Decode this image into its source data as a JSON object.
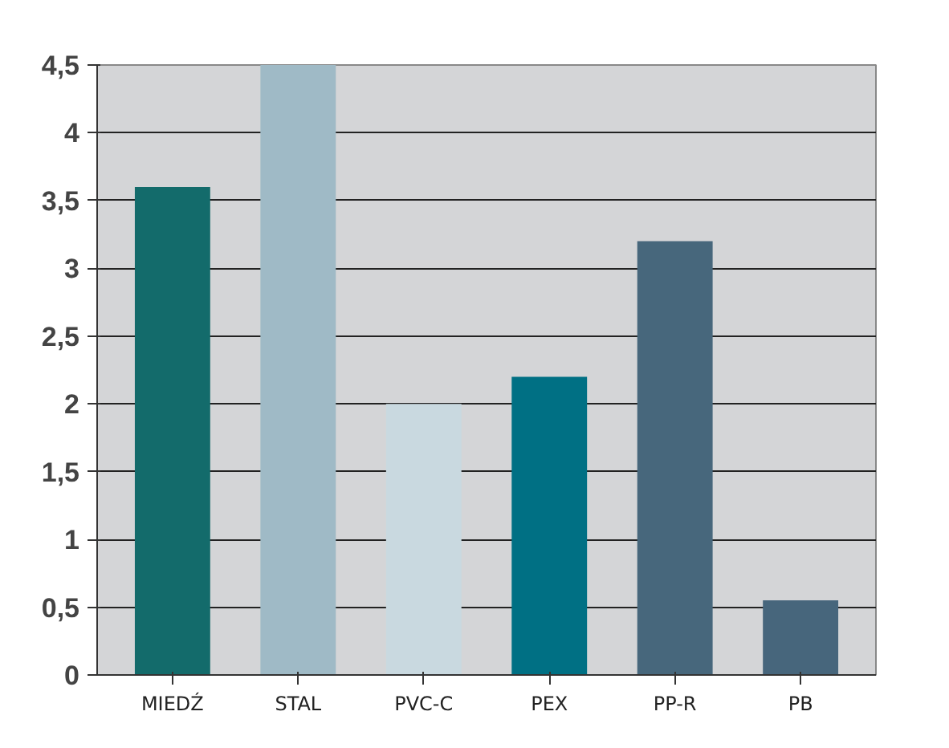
{
  "chart_data": {
    "type": "bar",
    "categories": [
      "MIEDŹ",
      "STAL",
      "PVC-C",
      "PEX",
      "PP-R",
      "PB"
    ],
    "values": [
      3.6,
      4.5,
      2.0,
      2.2,
      3.2,
      0.55
    ],
    "colors": [
      "#136b6b",
      "#9fbac6",
      "#c9d9e0",
      "#007084",
      "#47677c",
      "#47667c"
    ],
    "ylim": [
      0,
      4.5
    ],
    "yticks": [
      0,
      {
        "value": 0.5,
        "label": "0,5"
      },
      1,
      {
        "value": 1.5,
        "label": "1,5"
      },
      2,
      {
        "value": 2.5,
        "label": "2,5"
      },
      3,
      {
        "value": 3.5,
        "label": "3,5"
      },
      4,
      {
        "value": 4.5,
        "label": "4,5"
      }
    ],
    "grid": "y"
  }
}
